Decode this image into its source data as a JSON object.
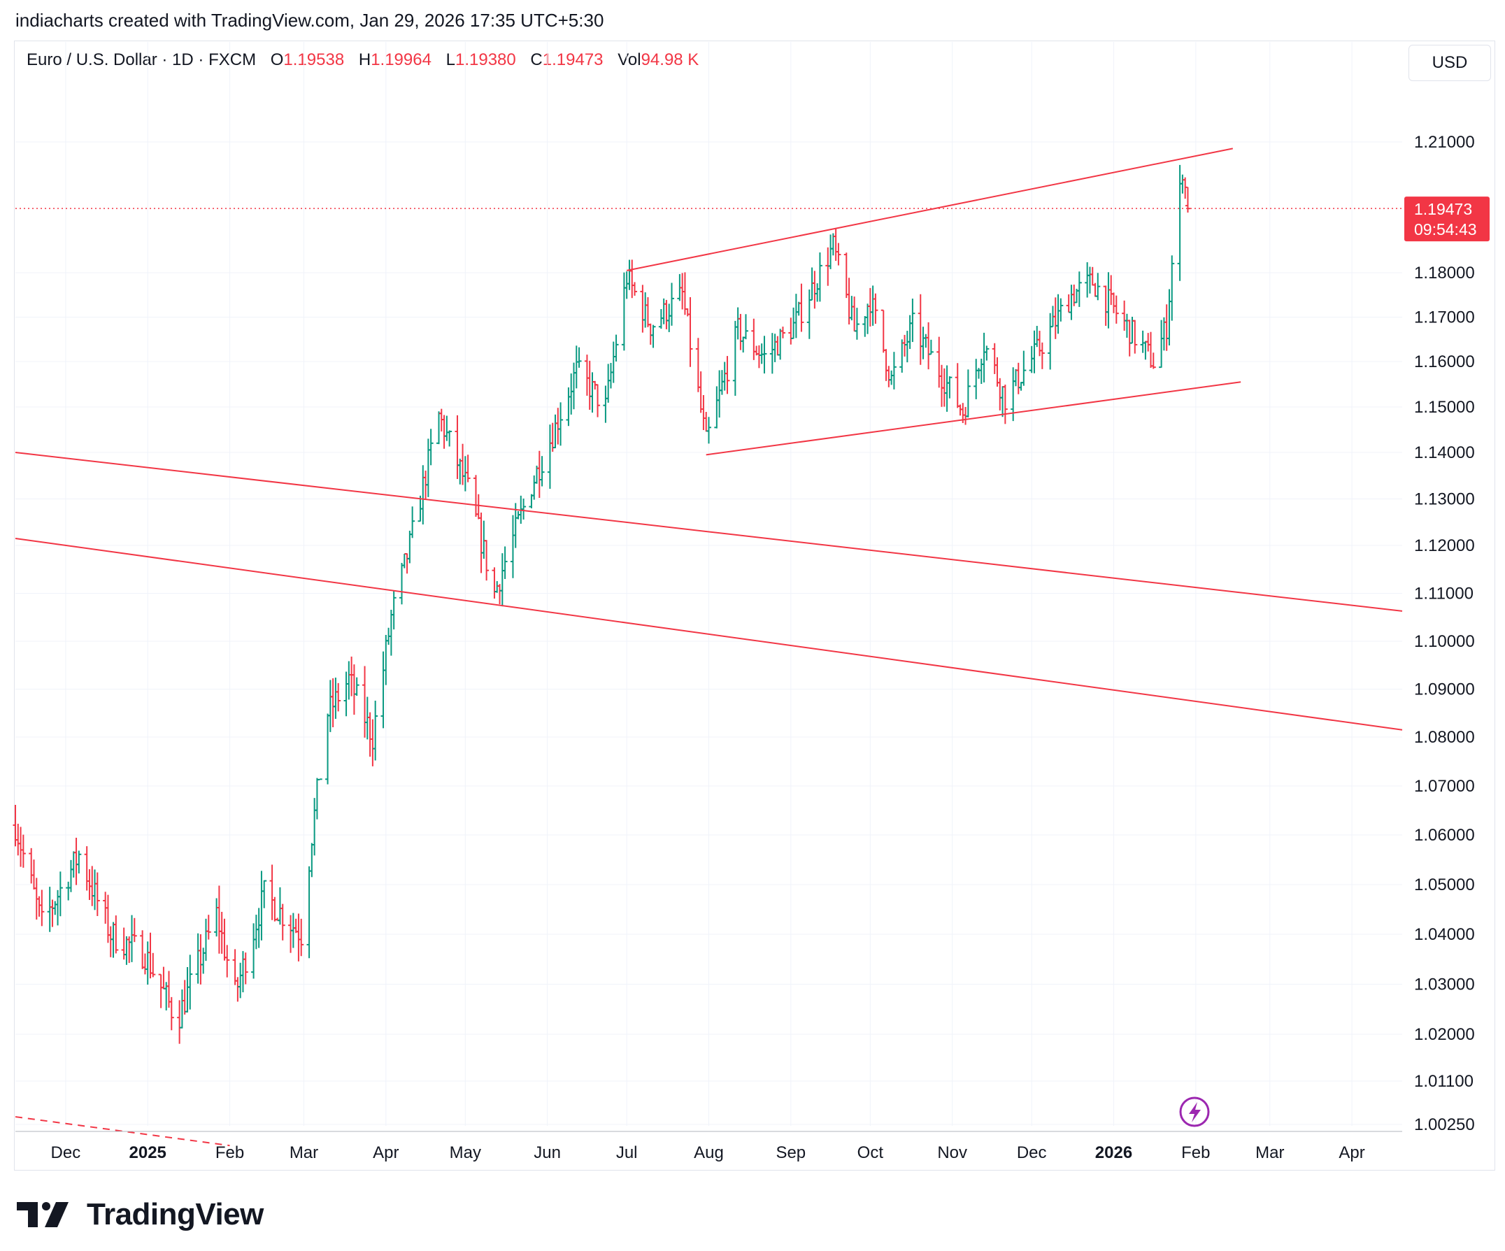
{
  "attribution": "indiacharts created with TradingView.com, Jan 29, 2026 17:35 UTC+5:30",
  "legend": {
    "symbol": "Euro / U.S. Dollar · 1D · FXCM",
    "open_label": "O",
    "open": "1.19538",
    "high_label": "H",
    "high": "1.19964",
    "low_label": "L",
    "low": "1.19380",
    "close_label": "C",
    "close": "1.19473",
    "vol_label": "Vol",
    "vol": "94.98 K"
  },
  "currency": "USD",
  "last_price": {
    "price": "1.19473",
    "countdown": "09:54:43"
  },
  "brand": "TradingView",
  "colors": {
    "up": "#089981",
    "down": "#f23645",
    "line": "#f23645",
    "grid": "#f0f3fa",
    "text": "#131722"
  },
  "chart_data": {
    "type": "ohlc",
    "title": "Euro / U.S. Dollar · 1D · FXCM",
    "ylabel": "USD",
    "y_tick_labels": [
      "1.21000",
      "1.18000",
      "1.17000",
      "1.16000",
      "1.15000",
      "1.14000",
      "1.13000",
      "1.12000",
      "1.11000",
      "1.10000",
      "1.09000",
      "1.08000",
      "1.07000",
      "1.06000",
      "1.05000",
      "1.04000",
      "1.03000",
      "1.02000",
      "1.01100",
      "1.00250"
    ],
    "y_ticks": [
      1.21,
      1.18,
      1.17,
      1.16,
      1.15,
      1.14,
      1.13,
      1.12,
      1.11,
      1.1,
      1.09,
      1.08,
      1.07,
      1.06,
      1.05,
      1.04,
      1.03,
      1.02,
      1.011,
      1.0025
    ],
    "x_tick_labels": [
      "Dec",
      "2025",
      "Feb",
      "Mar",
      "Apr",
      "May",
      "Jun",
      "Jul",
      "Aug",
      "Sep",
      "Oct",
      "Nov",
      "Dec",
      "2026",
      "Feb",
      "Mar",
      "Apr"
    ],
    "x_tick_dates": [
      "2024-12-01",
      "2025-01-01",
      "2025-02-01",
      "2025-03-01",
      "2025-04-01",
      "2025-05-01",
      "2025-06-01",
      "2025-07-01",
      "2025-08-01",
      "2025-09-01",
      "2025-10-01",
      "2025-11-01",
      "2025-12-01",
      "2026-01-01",
      "2026-02-01",
      "2026-03-01",
      "2026-04-01"
    ],
    "x_range": [
      "2024-11-12",
      "2026-04-20"
    ],
    "y_range": [
      0.998,
      1.225
    ],
    "close_path": [
      [
        "2024-11-12",
        1.062
      ],
      [
        "2024-11-22",
        1.042
      ],
      [
        "2024-12-06",
        1.056
      ],
      [
        "2024-12-18",
        1.04
      ],
      [
        "2024-12-31",
        1.036
      ],
      [
        "2025-01-10",
        1.025
      ],
      [
        "2025-01-13",
        1.024
      ],
      [
        "2025-01-27",
        1.044
      ],
      [
        "2025-02-03",
        1.028
      ],
      [
        "2025-02-14",
        1.048
      ],
      [
        "2025-02-28",
        1.04
      ],
      [
        "2025-03-04",
        1.06
      ],
      [
        "2025-03-10",
        1.085
      ],
      [
        "2025-03-18",
        1.092
      ],
      [
        "2025-03-27",
        1.08
      ],
      [
        "2025-04-03",
        1.105
      ],
      [
        "2025-04-10",
        1.12
      ],
      [
        "2025-04-21",
        1.148
      ],
      [
        "2025-05-02",
        1.132
      ],
      [
        "2025-05-12",
        1.11
      ],
      [
        "2025-05-26",
        1.133
      ],
      [
        "2025-06-03",
        1.144
      ],
      [
        "2025-06-12",
        1.158
      ],
      [
        "2025-06-23",
        1.15
      ],
      [
        "2025-07-01",
        1.179
      ],
      [
        "2025-07-10",
        1.168
      ],
      [
        "2025-07-22",
        1.175
      ],
      [
        "2025-07-31",
        1.142
      ],
      [
        "2025-08-12",
        1.167
      ],
      [
        "2025-08-22",
        1.161
      ],
      [
        "2025-09-02",
        1.168
      ],
      [
        "2025-09-17",
        1.186
      ],
      [
        "2025-09-25",
        1.167
      ],
      [
        "2025-10-01",
        1.174
      ],
      [
        "2025-10-09",
        1.156
      ],
      [
        "2025-10-17",
        1.168
      ],
      [
        "2025-10-31",
        1.154
      ],
      [
        "2025-11-05",
        1.149
      ],
      [
        "2025-11-13",
        1.164
      ],
      [
        "2025-11-21",
        1.152
      ],
      [
        "2025-12-05",
        1.164
      ],
      [
        "2025-12-16",
        1.175
      ],
      [
        "2025-12-24",
        1.178
      ],
      [
        "2026-01-02",
        1.171
      ],
      [
        "2026-01-16",
        1.16
      ],
      [
        "2026-01-21",
        1.168
      ],
      [
        "2026-01-23",
        1.182
      ],
      [
        "2026-01-27",
        1.204
      ],
      [
        "2026-01-29",
        1.19473
      ]
    ],
    "last_bar": {
      "date": "2026-01-29",
      "open": 1.19538,
      "high": 1.19964,
      "low": 1.1938,
      "close": 1.19473
    },
    "trendlines": [
      {
        "name": "channel-upper",
        "from": [
          "2025-07-01",
          1.1805
        ],
        "to": [
          "2026-02-15",
          1.2085
        ]
      },
      {
        "name": "channel-lower",
        "from": [
          "2025-07-31",
          1.1395
        ],
        "to": [
          "2026-02-18",
          1.1555
        ]
      },
      {
        "name": "downtrend-upper",
        "from": [
          "2024-11-12",
          1.14
        ],
        "to": [
          "2026-04-20",
          1.1063
        ]
      },
      {
        "name": "downtrend-lower",
        "from": [
          "2024-11-12",
          1.1215
        ],
        "to": [
          "2026-04-20",
          1.0815
        ]
      },
      {
        "name": "dashed-line",
        "from": [
          "2024-11-12",
          1.004
        ],
        "to": [
          "2025-02-01",
          0.9985
        ],
        "dashed": true
      }
    ]
  }
}
